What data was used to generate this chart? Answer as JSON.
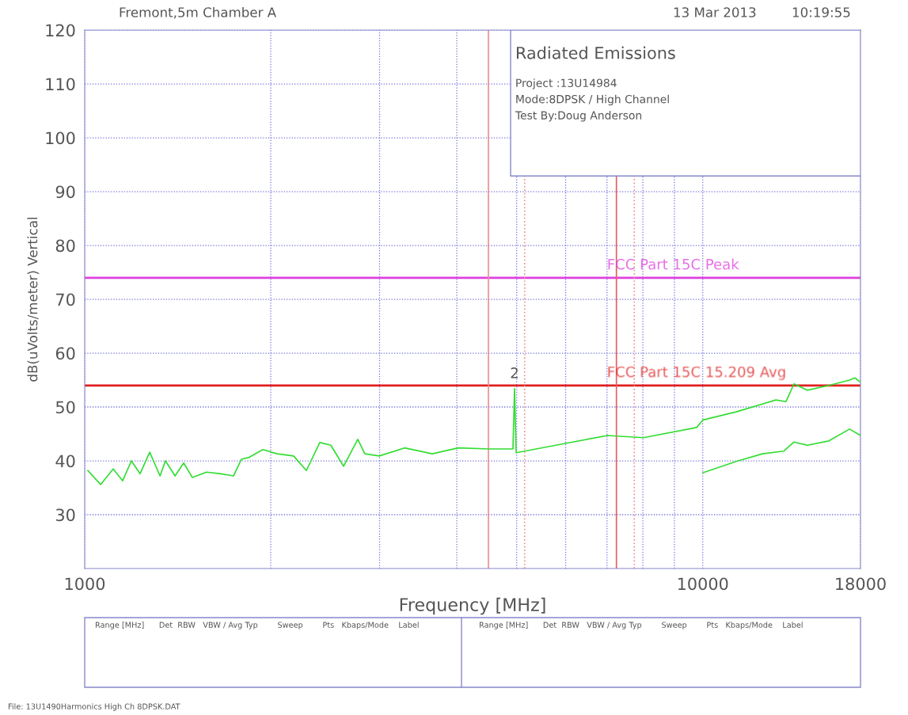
{
  "chart_data": {
    "type": "line",
    "title": "Fremont,5m Chamber A",
    "xlabel": "Frequency [MHz]",
    "ylabel": "dB(uVolts/meter) Vertical",
    "log": "x",
    "grid": true,
    "marker": "none",
    "line_style": "solid",
    "xlim": [
      1000,
      18000
    ],
    "ylim": [
      20,
      120
    ],
    "xticks": [
      1000,
      {
        "value": 2000,
        "label": null
      },
      {
        "value": 3000,
        "label": null
      },
      {
        "value": 4000,
        "label": null
      },
      {
        "value": 5000,
        "label": null
      },
      {
        "value": 6000,
        "label": null
      },
      {
        "value": 7000,
        "label": null
      },
      {
        "value": 8000,
        "label": null
      },
      {
        "value": 9000,
        "label": null
      },
      10000,
      18000
    ],
    "yticks": [
      30,
      40,
      50,
      60,
      70,
      80,
      90,
      100,
      110,
      120
    ],
    "series": [
      {
        "color": "#33dd33",
        "x": [
          1012,
          1061,
          1112,
          1152,
          1190,
          1229,
          1274,
          1324,
          1351,
          1400,
          1446,
          1494,
          1575,
          1661,
          1741,
          1793,
          1841,
          1942,
          2048,
          2178,
          2284,
          2401,
          2502,
          2623,
          2766,
          2840,
          2996,
          3293,
          3650,
          4023,
          4512,
          4931,
          4960,
          4990,
          5974,
          7005,
          8023,
          9775,
          10010,
          11330,
          13130,
          13640,
          14050,
          14770,
          16000,
          17280,
          17630,
          18000
        ],
        "values": [
          38.2,
          35.6,
          38.5,
          36.3,
          40,
          37.6,
          41.6,
          37.2,
          40,
          37.2,
          39.6,
          36.9,
          37.9,
          37.6,
          37.2,
          40.3,
          40.6,
          42.1,
          41.3,
          40.9,
          38.2,
          43.4,
          42.9,
          39,
          44,
          41.3,
          40.9,
          42.4,
          41.3,
          42.4,
          42.2,
          42.2,
          53.4,
          41.5,
          43.2,
          44.7,
          44.3,
          46.2,
          47.6,
          49.1,
          51.3,
          51,
          54.3,
          53.1,
          54,
          55,
          55.4,
          54.6
        ]
      },
      {
        "color": "#33dd33",
        "x": [
          10010,
          11330,
          12490,
          13520,
          14050,
          14770,
          16000,
          17280,
          18000
        ],
        "values": [
          37.8,
          39.9,
          41.3,
          41.8,
          43.5,
          42.9,
          43.7,
          45.9,
          44.7
        ]
      }
    ],
    "ref_lines": [
      {
        "axis": "y",
        "value": 74,
        "label": "FCC Part 15C Peak",
        "color": "#e040e0",
        "line_style": "solid"
      },
      {
        "axis": "y",
        "value": 54,
        "label": "FCC Part 15C 15.209 Avg",
        "color": "#e02020",
        "line_style": "solid"
      },
      {
        "axis": "x",
        "value": 4500,
        "color": "#e89090",
        "line_style": "solid"
      },
      {
        "axis": "x",
        "value": 5150,
        "color": "#e89090",
        "line_style": "dotted"
      },
      {
        "axis": "x",
        "value": 7250,
        "color": "#e06060",
        "line_style": "solid"
      },
      {
        "axis": "x",
        "value": 7750,
        "color": "#e89090",
        "line_style": "dotted"
      }
    ],
    "annotations": [
      "13 Mar 2013",
      "10:19:55",
      "Radiated Emissions",
      "Project :13U14984",
      "Mode:8DPSK / High Channel",
      "Test By:Doug Anderson",
      "Range [MHz]      Det  RBW   VBW / Avg Typ        Sweep        Pts   Kbaps/Mode    Label",
      "Range [MHz]      Det  RBW   VBW / Avg Typ        Sweep        Pts   Kbaps/Mode    Label",
      "File: 13U1490Harmonics High Ch 8DPSK.DAT",
      {
        "text": "2",
        "x": 4960,
        "y": 54
      }
    ]
  }
}
